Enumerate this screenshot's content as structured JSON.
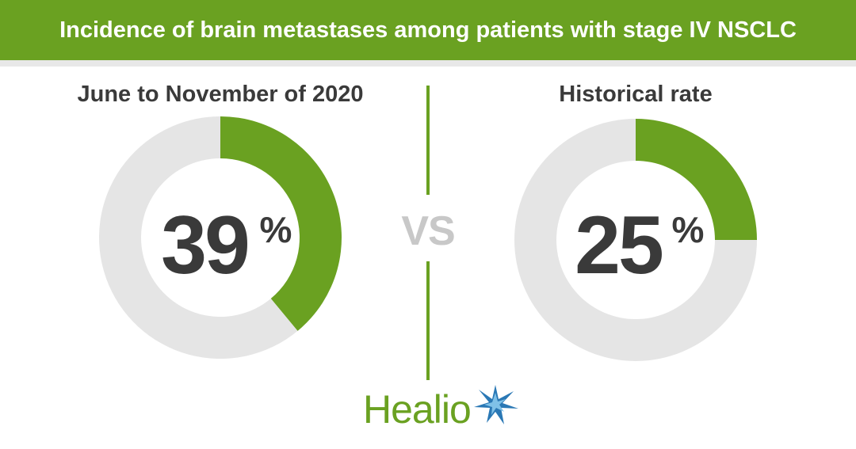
{
  "header": {
    "title": "Incidence of brain metastases among patients with stage IV NSCLC"
  },
  "divider": {
    "label": "VS"
  },
  "brand": {
    "logo_text": "Healio",
    "logo_icon": "star-burst-icon",
    "green": "#6aa121",
    "blue": "#2a78b5",
    "gray_track": "#e5e5e5",
    "value_text_color": "#3a3a3a"
  },
  "chart_data": [
    {
      "type": "pie",
      "subtype": "donut",
      "title": "June to November of 2020",
      "value": 39,
      "unit": "%",
      "value_label": "39",
      "unit_label": "%",
      "slices": [
        {
          "value": 39,
          "color": "#6aa121"
        },
        {
          "value": 61,
          "color": "#e5e5e5"
        }
      ]
    },
    {
      "type": "pie",
      "subtype": "donut",
      "title": "Historical rate",
      "value": 25,
      "unit": "%",
      "value_label": "25",
      "unit_label": "%",
      "slices": [
        {
          "value": 25,
          "color": "#6aa121"
        },
        {
          "value": 75,
          "color": "#e5e5e5"
        }
      ]
    }
  ]
}
